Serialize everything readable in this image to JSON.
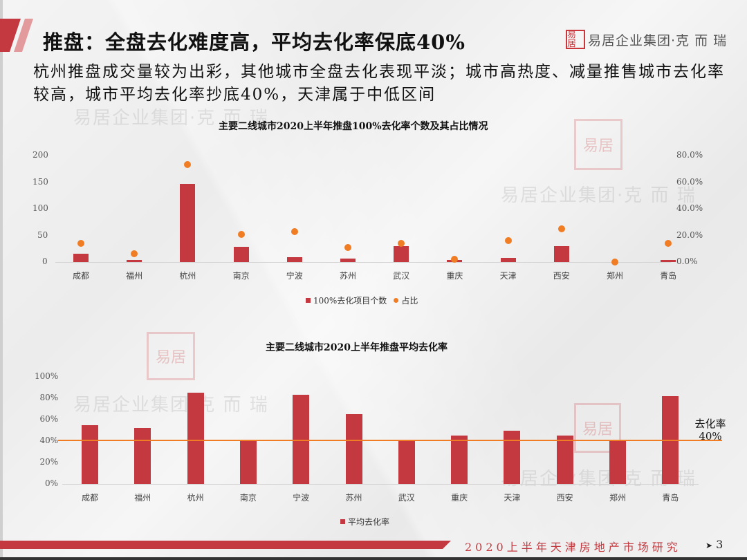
{
  "header": {
    "title": "推盘：全盘去化难度高，平均去化率保底40%",
    "logo_seal": "易居",
    "logo_text": "易居企业集团·克 而 瑞",
    "subtitle": "杭州推盘成交量较为出彩，其他城市全盘去化表现平淡；城市高热度、减量推售城市去化率较高，城市平均去化率抄底40%，天津属于中低区间"
  },
  "watermark": {
    "text": "易居企业集团·克 而 瑞",
    "seal": "易居"
  },
  "colors": {
    "bar": "#c3393f",
    "dot": "#f07c23",
    "reference_line": "#f07c23",
    "footer_accent": "#c3393f"
  },
  "chart_data": [
    {
      "type": "bar+scatter",
      "title": "主要二线城市2020上半年推盘100%去化率个数及其占比情况",
      "categories": [
        "成都",
        "福州",
        "杭州",
        "南京",
        "宁波",
        "苏州",
        "武汉",
        "重庆",
        "天津",
        "西安",
        "郑州",
        "青岛"
      ],
      "series": [
        {
          "name": "100%去化项目个数",
          "type": "bar",
          "axis": "left",
          "values": [
            15,
            4,
            147,
            28,
            9,
            6,
            30,
            4,
            8,
            30,
            0,
            4
          ]
        },
        {
          "name": "占比",
          "type": "scatter",
          "axis": "right",
          "values": [
            14,
            6,
            73,
            21,
            23,
            11,
            14,
            2,
            16,
            25,
            0,
            14
          ]
        }
      ],
      "y_left": {
        "ticks": [
          "0",
          "50",
          "100",
          "150",
          "200"
        ],
        "ylim": [
          0,
          200
        ]
      },
      "y_right": {
        "ticks": [
          "0.0%",
          "20.0%",
          "40.0%",
          "60.0%",
          "80.0%"
        ],
        "ylim": [
          0,
          80
        ]
      },
      "legend": [
        "100%去化项目个数",
        "占比"
      ],
      "legend_position": "bottom"
    },
    {
      "type": "bar",
      "title": "主要二线城市2020上半年推盘平均去化率",
      "categories": [
        "成都",
        "福州",
        "杭州",
        "南京",
        "宁波",
        "苏州",
        "武汉",
        "重庆",
        "天津",
        "西安",
        "郑州",
        "青岛"
      ],
      "series": [
        {
          "name": "平均去化率",
          "values": [
            55,
            52,
            85,
            40,
            83,
            65,
            40,
            45,
            50,
            45,
            40,
            82
          ]
        }
      ],
      "y": {
        "ticks": [
          "0%",
          "20%",
          "40%",
          "60%",
          "80%",
          "100%"
        ],
        "ylim": [
          0,
          100
        ]
      },
      "reference_line": {
        "value": 40,
        "label_line1": "去化率",
        "label_line2": "40%"
      },
      "legend": [
        "平均去化率"
      ],
      "legend_position": "bottom"
    }
  ],
  "footer": {
    "text": "2020上半年天津房地产市场研究",
    "page_marker": "➤",
    "page_number": "3"
  }
}
